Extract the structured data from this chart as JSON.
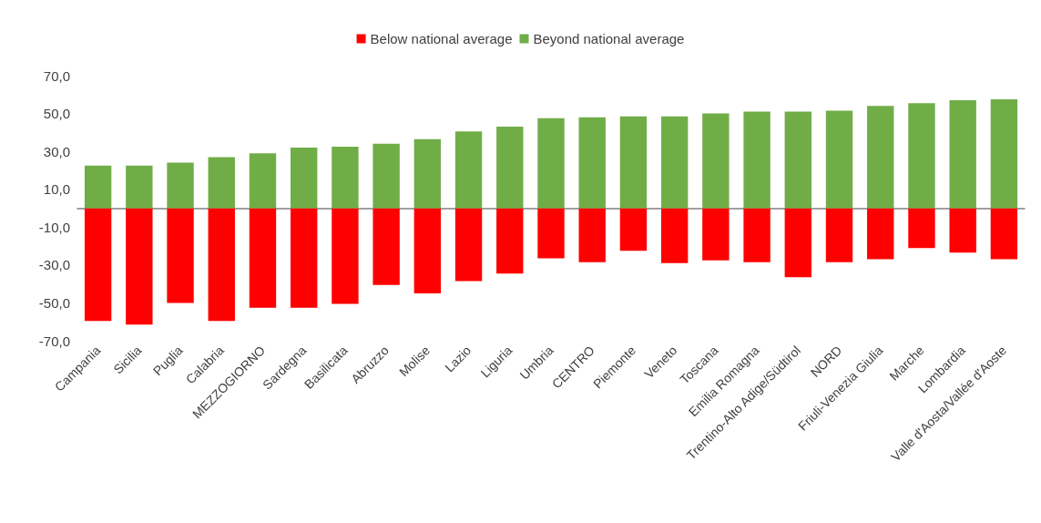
{
  "chart_data": {
    "type": "bar",
    "categories": [
      "Campania",
      "Sicilia",
      "Puglia",
      "Calabria",
      "MEZZOGIORNO",
      "Sardegna",
      "Basilicata",
      "Abruzzo",
      "Molise",
      "Lazio",
      "Liguria",
      "Umbria",
      "CENTRO",
      "Piemonte",
      "Veneto",
      "Toscana",
      "Emilia Romagna",
      "Trentino-Alto Adige/Südtirol",
      "NORD",
      "Friuli-Venezia Giulia",
      "Marche",
      "Lombardia",
      "Valle d'Aosta/Vallée d'Aoste"
    ],
    "series": [
      {
        "name": "Below national average",
        "color": "#ff0000",
        "values": [
          -59.5,
          -61.5,
          -50,
          -59.5,
          -52.5,
          -52.5,
          -50.5,
          -40.5,
          -45,
          -38.5,
          -34.5,
          -26.5,
          -28.5,
          -22.5,
          -29,
          -27.5,
          -28.5,
          -36.5,
          -28.5,
          -27,
          -21,
          -23.5,
          -27
        ]
      },
      {
        "name": "Beyond national average",
        "color": "#70ad47",
        "values": [
          22.5,
          22.5,
          24,
          27,
          29,
          32,
          32.5,
          34,
          36.5,
          40.5,
          43,
          47.5,
          48,
          48.5,
          48.5,
          50,
          51,
          51,
          51.5,
          54,
          55.5,
          57,
          57.5
        ]
      }
    ],
    "ylim": [
      -70,
      70
    ],
    "yticks": [
      {
        "value": -70,
        "label": "-70,0"
      },
      {
        "value": -50,
        "label": "-50,0"
      },
      {
        "value": -30,
        "label": "-30,0"
      },
      {
        "value": -10,
        "label": "-10,0"
      },
      {
        "value": 10,
        "label": "10,0"
      },
      {
        "value": 30,
        "label": "30,0"
      },
      {
        "value": 50,
        "label": "50,0"
      },
      {
        "value": 70,
        "label": "70,0"
      }
    ],
    "stacked": true,
    "grid": false,
    "legend": "top"
  }
}
